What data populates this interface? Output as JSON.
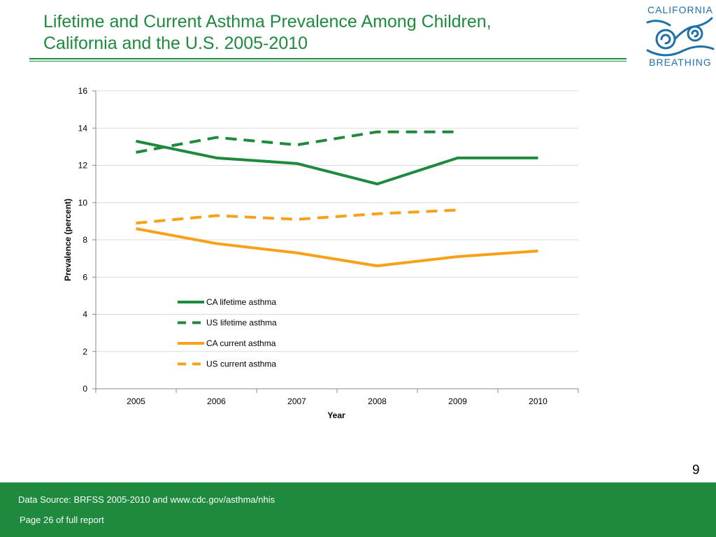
{
  "title_lines": [
    "Lifetime and Current Asthma Prevalence Among Children,",
    "California and the U.S. 2005-2010"
  ],
  "logo": {
    "top_text": "CALIFORNIA",
    "bottom_text": "BREATHING",
    "color": "#1f6fa8"
  },
  "page_number": "9",
  "footer": {
    "source": "Data Source: BRFSS 2005-2010 and  www.cdc.gov/asthma/nhis",
    "page_ref": "Page 26 of full report",
    "color": "#1e8a3e"
  },
  "chart_data": {
    "type": "line",
    "categories": [
      "2005",
      "2006",
      "2007",
      "2008",
      "2009",
      "2010"
    ],
    "xlabel": "Year",
    "ylabel": "Prevalence (percent)",
    "ylim": [
      0,
      16
    ],
    "yticks": [
      "0",
      "2",
      "4",
      "6",
      "8",
      "10",
      "12",
      "14",
      "16"
    ],
    "grid": "horizontal",
    "legend_position": "center",
    "series": [
      {
        "name": "CA lifetime asthma",
        "color": "#1e8a3e",
        "dashed": false,
        "values": [
          13.3,
          12.4,
          12.1,
          11.0,
          12.4,
          12.4
        ]
      },
      {
        "name": "US lifetime asthma",
        "color": "#1e8a3e",
        "dashed": true,
        "values": [
          12.7,
          13.5,
          13.1,
          13.8,
          13.8,
          null
        ]
      },
      {
        "name": "CA current asthma",
        "color": "#f7a11a",
        "dashed": false,
        "values": [
          8.6,
          7.8,
          7.3,
          6.6,
          7.1,
          7.4
        ]
      },
      {
        "name": "US current asthma",
        "color": "#f7a11a",
        "dashed": true,
        "values": [
          8.9,
          9.3,
          9.1,
          9.4,
          9.6,
          null
        ]
      }
    ]
  }
}
